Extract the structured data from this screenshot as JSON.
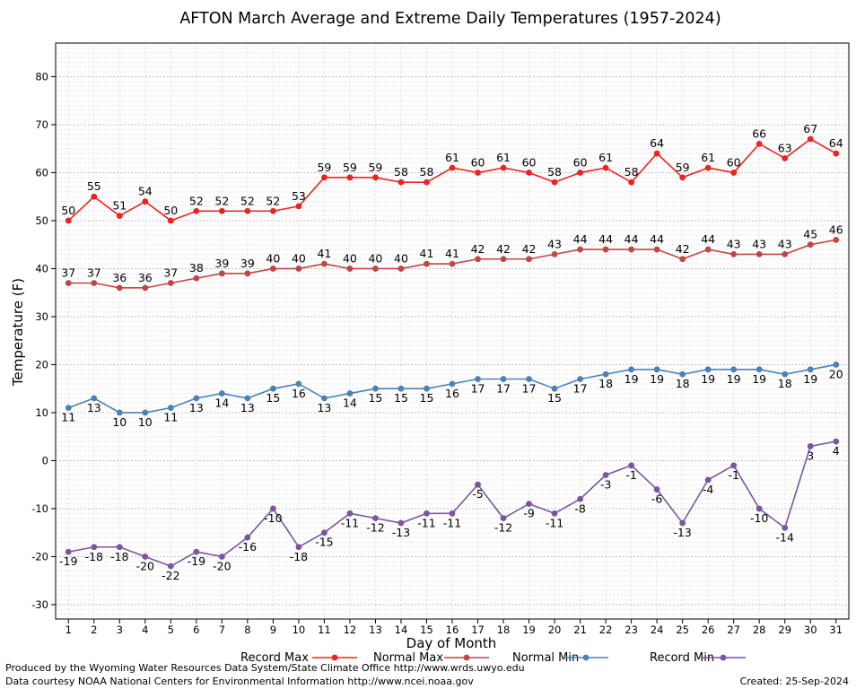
{
  "chart_data": {
    "type": "line",
    "title": "AFTON March Average and Extreme Daily Temperatures (1957-2024)",
    "xlabel": "Day of Month",
    "ylabel": "Temperature (F)",
    "ylim": [
      -33,
      87
    ],
    "y_ticks": [
      -30,
      -20,
      -10,
      0,
      10,
      20,
      30,
      40,
      50,
      60,
      70,
      80
    ],
    "x": [
      1,
      2,
      3,
      4,
      5,
      6,
      7,
      8,
      9,
      10,
      11,
      12,
      13,
      14,
      15,
      16,
      17,
      18,
      19,
      20,
      21,
      22,
      23,
      24,
      25,
      26,
      27,
      28,
      29,
      30,
      31
    ],
    "grid": true,
    "legend_position": "bottom",
    "series": [
      {
        "name": "Record Max",
        "color": "#ee2222",
        "label_position": "above",
        "values": [
          50,
          55,
          51,
          54,
          50,
          52,
          52,
          52,
          52,
          53,
          59,
          59,
          59,
          58,
          58,
          61,
          60,
          61,
          60,
          58,
          60,
          61,
          58,
          64,
          59,
          61,
          60,
          66,
          63,
          67,
          64
        ]
      },
      {
        "name": "Normal Max",
        "color": "#c04545",
        "label_position": "above",
        "values": [
          37,
          37,
          36,
          36,
          37,
          38,
          39,
          39,
          40,
          40,
          41,
          40,
          40,
          40,
          41,
          41,
          42,
          42,
          42,
          43,
          44,
          44,
          44,
          44,
          42,
          44,
          43,
          43,
          43,
          45,
          46
        ]
      },
      {
        "name": "Normal Min",
        "color": "#4a82b8",
        "label_position": "below",
        "values": [
          11,
          13,
          10,
          10,
          11,
          13,
          14,
          13,
          15,
          16,
          13,
          14,
          15,
          15,
          15,
          16,
          17,
          17,
          17,
          15,
          17,
          18,
          19,
          19,
          18,
          19,
          19,
          19,
          18,
          19,
          20
        ]
      },
      {
        "name": "Record Min",
        "color": "#7a55a0",
        "label_position": "below",
        "values": [
          -19,
          -18,
          -18,
          -20,
          -22,
          -19,
          -20,
          -16,
          -10,
          -18,
          -15,
          -11,
          -12,
          -13,
          -11,
          -11,
          -5,
          -12,
          -9,
          -11,
          -8,
          -3,
          -1,
          -6,
          -13,
          -4,
          -1,
          -10,
          -14,
          3,
          4
        ]
      }
    ]
  },
  "footer": {
    "credit_line1": "Produced by the Wyoming Water Resources Data System/State Climate Office http://www.wrds.uwyo.edu",
    "credit_line2": "Data courtesy NOAA National Centers for Environmental Information http://www.ncei.noaa.gov",
    "created": "Created:  25-Sep-2024"
  }
}
